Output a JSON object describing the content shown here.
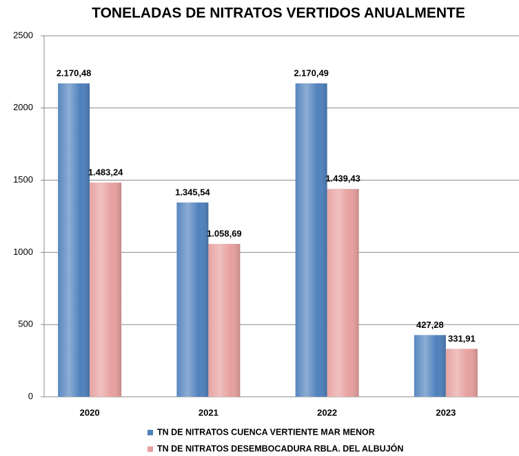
{
  "chart_data": {
    "type": "bar",
    "title": "TONELADAS DE NITRATOS  VERTIDOS ANUALMENTE",
    "categories": [
      "2020",
      "2021",
      "2022",
      "2023"
    ],
    "series": [
      {
        "name": "TN  DE NITRATOS CUENCA VERTIENTE MAR MENOR",
        "color": "#4f81bd",
        "values": [
          2170.48,
          1345.54,
          2170.49,
          427.28
        ],
        "value_labels": [
          "2.170,48",
          "1.345,54",
          "2.170,49",
          "427,28"
        ]
      },
      {
        "name": "TN  DE NITRATOS DESEMBOCADURA RBLA. DEL ALBUJÓN",
        "color": "#e6a09e",
        "values": [
          1483.24,
          1058.69,
          1439.43,
          331.91
        ],
        "value_labels": [
          "1.483,24",
          "1.058,69",
          "1.439,43",
          "331,91"
        ]
      }
    ],
    "ylim": [
      0,
      2500
    ],
    "yticks": [
      0,
      500,
      1000,
      1500,
      2000,
      2500
    ],
    "grid": true
  }
}
